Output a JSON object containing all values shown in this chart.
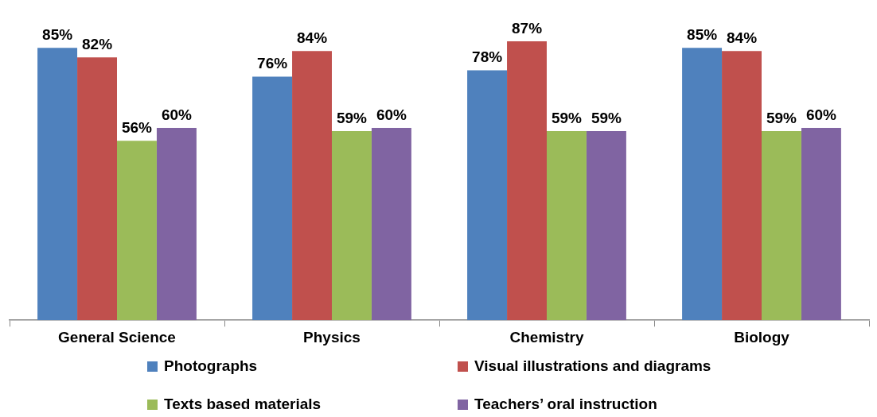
{
  "chart_data": {
    "type": "bar",
    "categories": [
      "General Science",
      "Physics",
      "Chemistry",
      "Biology"
    ],
    "series": [
      {
        "name": "Photographs",
        "color": "#4f81bd",
        "values": [
          85,
          76,
          78,
          85
        ],
        "value_labels": [
          "85%",
          "76%",
          "78%",
          "85%"
        ]
      },
      {
        "name": "Visual illustrations and diagrams",
        "color": "#c0504d",
        "values": [
          82,
          84,
          87,
          84
        ],
        "value_labels": [
          "82%",
          "84%",
          "87%",
          "84%"
        ]
      },
      {
        "name": "Texts based materials",
        "color": "#9bbb59",
        "values": [
          56,
          59,
          59,
          59
        ],
        "value_labels": [
          "56%",
          "59%",
          "59%",
          "59%"
        ]
      },
      {
        "name": "Teachers’ oral instruction",
        "color": "#8064a2",
        "values": [
          60,
          60,
          59,
          60
        ],
        "value_labels": [
          "60%",
          "60%",
          "59%",
          "60%"
        ]
      }
    ],
    "legend": "bottom",
    "grid": false
  }
}
